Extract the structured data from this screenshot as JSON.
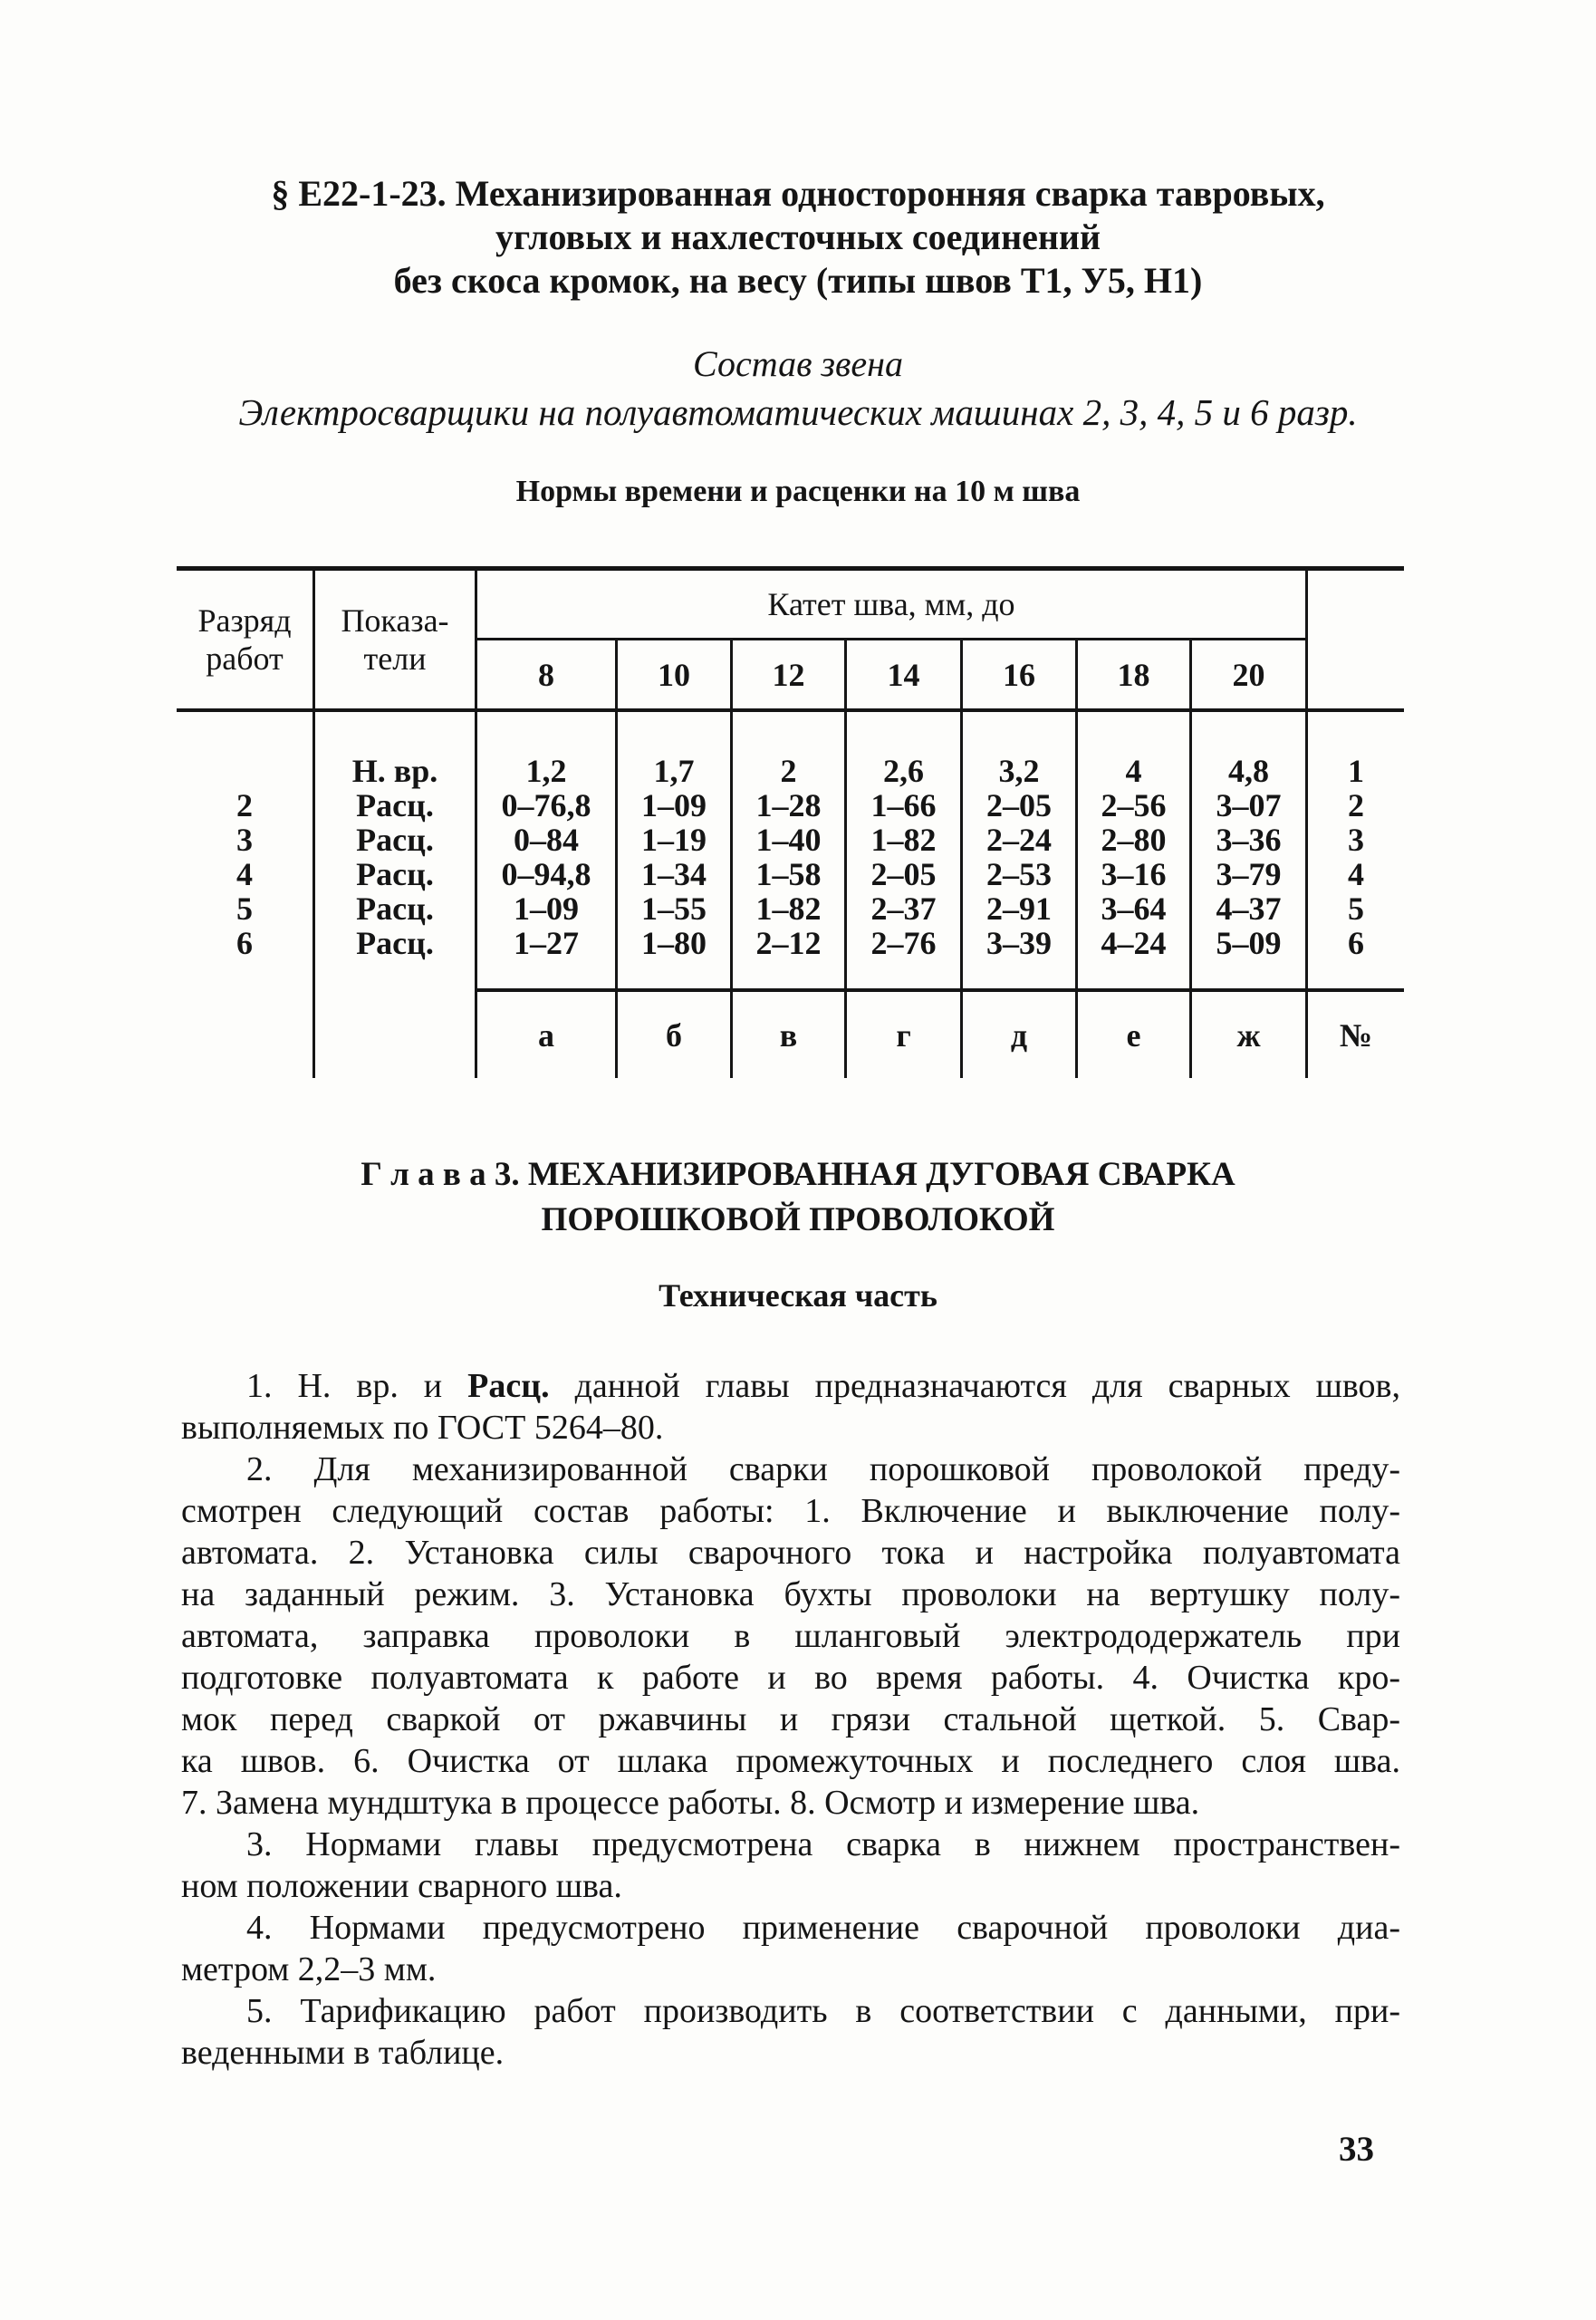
{
  "page": {
    "number": "33"
  },
  "heading": {
    "line1": "§ Е22-1-23. Механизированная односторонняя сварка тавровых,",
    "line2": "угловых и нахлесточных соединений",
    "line3": "без скоса кромок, на весу (типы швов Т1, У5, Н1)"
  },
  "crew": {
    "title": "Состав звена",
    "composition": "Электросварщики на полуавтоматических машинах 2, 3, 4, 5 и 6 разр."
  },
  "table": {
    "caption": "Нормы времени и расценки на 10 м шва",
    "grade_header": "Разряд работ",
    "indicator_header_line1": "Показа-",
    "indicator_header_line2": "тели",
    "span_header": "Катет шва, мм, до",
    "kat_headers": [
      "8",
      "10",
      "12",
      "14",
      "16",
      "18",
      "20"
    ],
    "grades": [
      "",
      "2",
      "3",
      "4",
      "5",
      "6"
    ],
    "indicators": [
      "Н. вр.",
      "Расц.",
      "Расц.",
      "Расц.",
      "Расц.",
      "Расц."
    ],
    "value_columns": [
      [
        "1,2",
        "0–76,8",
        "0–84",
        "0–94,8",
        "1–09",
        "1–27"
      ],
      [
        "1,7",
        "1–09",
        "1–19",
        "1–34",
        "1–55",
        "1–80"
      ],
      [
        "2",
        "1–28",
        "1–40",
        "1–58",
        "1–82",
        "2–12"
      ],
      [
        "2,6",
        "1–66",
        "1–82",
        "2–05",
        "2–37",
        "2–76"
      ],
      [
        "3,2",
        "2–05",
        "2–24",
        "2–53",
        "2–91",
        "3–39"
      ],
      [
        "4",
        "2–56",
        "2–80",
        "3–16",
        "3–64",
        "4–24"
      ],
      [
        "4,8",
        "3–07",
        "3–36",
        "3–79",
        "4–37",
        "5–09"
      ]
    ],
    "row_nums": [
      "1",
      "2",
      "3",
      "4",
      "5",
      "6"
    ],
    "footer_letters": [
      "а",
      "б",
      "в",
      "г",
      "д",
      "е",
      "ж"
    ],
    "footer_num": "№"
  },
  "chapter": {
    "line1": "Г л а в а 3. МЕХАНИЗИРОВАННАЯ ДУГОВАЯ СВАРКА",
    "line2": "ПОРОШКОВОЙ ПРОВОЛОКОЙ",
    "subtitle": "Техническая часть"
  },
  "body": {
    "paragraphs": [
      {
        "lines": [
          "1. Н. вр. и **Расц.** данной главы предназначаются для сварных швов,",
          "выполняемых по ГОСТ 5264–80."
        ]
      },
      {
        "lines": [
          "2. Для механизированной сварки порошковой проволокой преду-",
          "смотрен следующий состав работы: 1. Включение и выключение полу-",
          "автомата. 2. Установка силы сварочного тока и настройка полуавтомата",
          "на заданный режим. 3. Установка бухты проволоки на вертушку полу-",
          "автомата, заправка проволоки в шланговый электрододержатель при",
          "подготовке полуавтомата к работе и во время работы. 4. Очистка кро-",
          "мок перед сваркой от ржавчины и грязи стальной щеткой. 5. Свар-",
          "ка швов. 6. Очистка от шлака промежуточных и последнего слоя шва.",
          "7. Замена мундштука в процессе работы. 8. Осмотр и измерение шва."
        ]
      },
      {
        "lines": [
          "3. Нормами главы предусмотрена сварка в нижнем пространствен-",
          "ном положении сварного шва."
        ]
      },
      {
        "lines": [
          "4. Нормами предусмотрено применение сварочной проволоки диа-",
          "метром 2,2–3 мм."
        ]
      },
      {
        "lines": [
          "5. Тарификацию работ производить в соответствии с данными, при-",
          "веденными в таблице."
        ]
      }
    ]
  }
}
